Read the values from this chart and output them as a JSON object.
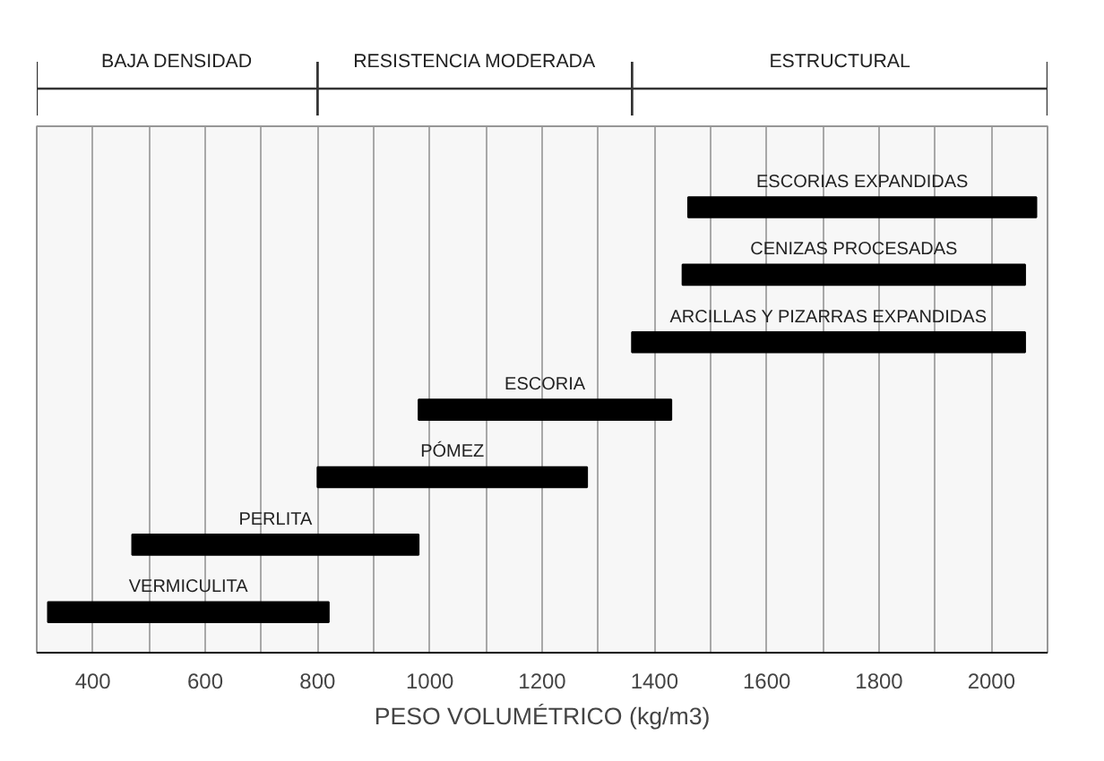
{
  "chart_data": {
    "type": "bar",
    "orientation": "horizontal",
    "xlabel": "PESO VOLUMÉTRICO (kg/m3)",
    "categories": [
      "ESCORIAS EXPANDIDAS",
      "CENIZAS PROCESADAS",
      "ARCILLAS Y PIZARRAS EXPANDIDAS",
      "ESCORIA",
      "PÓMEZ",
      "PERLITA",
      "VERMICULITA"
    ],
    "base": [
      1460,
      1450,
      1360,
      980,
      800,
      470,
      320
    ],
    "values": [
      620,
      610,
      700,
      450,
      480,
      510,
      500
    ],
    "color": "#000000",
    "xlim": [
      300,
      2100
    ],
    "xticks": [
      400,
      {
        "value": 500,
        "label": null
      },
      600,
      {
        "value": 700,
        "label": null
      },
      800,
      {
        "value": 900,
        "label": null
      },
      1000,
      {
        "value": 1100,
        "label": null
      },
      1200,
      {
        "value": 1300,
        "label": null
      },
      1400,
      {
        "value": 1500,
        "label": null
      },
      1600,
      {
        "value": 1700,
        "label": null
      },
      1800,
      {
        "value": 1900,
        "label": null
      },
      2000
    ],
    "grid": "x",
    "bands": [
      {
        "axis": "x",
        "from": 300,
        "to": 800,
        "label": "BAJA DENSIDAD"
      },
      {
        "axis": "x",
        "from": 800,
        "to": 1360,
        "label": "RESISTENCIA MODERADA"
      },
      {
        "axis": "x",
        "from": 1360,
        "to": 2100,
        "label": "ESTRUCTURAL"
      }
    ]
  }
}
